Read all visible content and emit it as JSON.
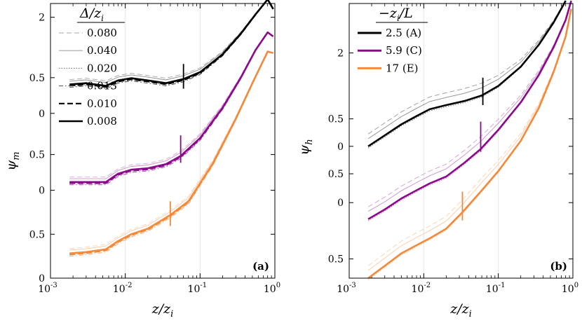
{
  "chart_data": [
    {
      "type": "line",
      "panel_label": "(a)",
      "ylabel_main": "ψ",
      "ylabel_sub": "m",
      "xlabel_main": "z/z",
      "xlabel_sub": "i",
      "xscale": "log",
      "xlim": [
        0.001,
        1
      ],
      "x_ticks": [
        {
          "base": "10",
          "exp": "-3",
          "value": 0.001
        },
        {
          "base": "10",
          "exp": "-2",
          "value": 0.01
        },
        {
          "base": "10",
          "exp": "-1",
          "value": 0.1
        },
        {
          "base": "10",
          "exp": "0",
          "value": 1
        }
      ],
      "vgrid": [
        0.01,
        0.1
      ],
      "y_ticks": [
        {
          "label": "0",
          "t": 1.0
        },
        {
          "label": "0.5",
          "t": 0.84
        },
        {
          "label": "0",
          "t": 0.68
        },
        {
          "label": "0.5",
          "t": 0.55
        },
        {
          "label": "0",
          "t": 0.4
        },
        {
          "label": "0.5",
          "t": 0.27
        },
        {
          "label": "2",
          "t": 0.05
        }
      ],
      "legend": {
        "title_main": "Δ/z",
        "title_sub": "i",
        "position": "top-left",
        "entries": [
          {
            "label": "0.080",
            "style": "dashed-thin"
          },
          {
            "label": "0.040",
            "style": "solid-thin"
          },
          {
            "label": "0.020",
            "style": "dotted"
          },
          {
            "label": "0.013",
            "style": "dashdot"
          },
          {
            "label": "0.010",
            "style": "dashed-thick"
          },
          {
            "label": "0.008",
            "style": "solid-thick"
          }
        ]
      },
      "series": [
        {
          "name": "2.5 (A)",
          "color": "#000000",
          "marker_x": 0.06,
          "marker_t": [
            0.22,
            0.31
          ],
          "x": [
            0.0018,
            0.003,
            0.0055,
            0.008,
            0.012,
            0.02,
            0.035,
            0.06,
            0.1,
            0.2,
            0.35,
            0.55,
            0.8,
            0.95
          ],
          "t": [
            0.295,
            0.29,
            0.3,
            0.28,
            0.272,
            0.28,
            0.29,
            0.275,
            0.25,
            0.185,
            0.11,
            0.04,
            -0.015,
            0.02
          ]
        },
        {
          "name": "5.9 (C)",
          "color": "#8a0a8a",
          "marker_x": 0.055,
          "marker_t": [
            0.48,
            0.58
          ],
          "x": [
            0.0018,
            0.003,
            0.0055,
            0.008,
            0.012,
            0.02,
            0.035,
            0.055,
            0.1,
            0.2,
            0.35,
            0.55,
            0.8,
            0.95
          ],
          "t": [
            0.65,
            0.65,
            0.65,
            0.62,
            0.605,
            0.6,
            0.585,
            0.555,
            0.49,
            0.38,
            0.27,
            0.17,
            0.105,
            0.12
          ]
        },
        {
          "name": "17 (E)",
          "color": "#f28a3c",
          "marker_x": 0.04,
          "marker_t": [
            0.72,
            0.81
          ],
          "x": [
            0.0018,
            0.003,
            0.0055,
            0.008,
            0.012,
            0.02,
            0.04,
            0.07,
            0.15,
            0.3,
            0.5,
            0.8,
            0.95
          ],
          "t": [
            0.91,
            0.905,
            0.895,
            0.865,
            0.84,
            0.82,
            0.77,
            0.72,
            0.58,
            0.42,
            0.29,
            0.175,
            0.18
          ]
        }
      ]
    },
    {
      "type": "line",
      "panel_label": "(b)",
      "ylabel_main": "ψ",
      "ylabel_sub": "h",
      "xlabel_main": "z/z",
      "xlabel_sub": "i",
      "xscale": "log",
      "xlim": [
        0.001,
        1
      ],
      "x_ticks": [
        {
          "base": "10",
          "exp": "-3",
          "value": 0.001
        },
        {
          "base": "10",
          "exp": "-2",
          "value": 0.01
        },
        {
          "base": "10",
          "exp": "-1",
          "value": 0.1
        },
        {
          "base": "10",
          "exp": "0",
          "value": 1
        }
      ],
      "vgrid": [
        0.01,
        0.1
      ],
      "y_ticks": [
        {
          "label": "0.5",
          "t": 0.93
        },
        {
          "label": "0",
          "t": 0.725
        },
        {
          "label": "0.5",
          "t": 0.62
        },
        {
          "label": "0",
          "t": 0.52
        },
        {
          "label": "0.5",
          "t": 0.42
        },
        {
          "label": "2",
          "t": 0.18
        }
      ],
      "legend": {
        "title_main": "−z",
        "title_sub": "i",
        "title_tail": "/L",
        "position": "top-left",
        "entries": [
          {
            "label": "2.5 (A)",
            "color": "#000000"
          },
          {
            "label": "5.9 (C)",
            "color": "#8a0a8a"
          },
          {
            "label": "17 (E)",
            "color": "#f28a3c"
          }
        ]
      },
      "series": [
        {
          "name": "2.5 (A)",
          "color": "#000000",
          "marker_x": 0.062,
          "marker_t": [
            0.27,
            0.37
          ],
          "x": [
            0.0018,
            0.003,
            0.005,
            0.008,
            0.012,
            0.02,
            0.035,
            0.06,
            0.1,
            0.2,
            0.35,
            0.55,
            0.8
          ],
          "t": [
            0.52,
            0.48,
            0.44,
            0.41,
            0.385,
            0.37,
            0.355,
            0.335,
            0.3,
            0.23,
            0.15,
            0.07,
            -0.01
          ]
        },
        {
          "name": "5.9 (C)",
          "color": "#8a0a8a",
          "marker_x": 0.058,
          "marker_t": [
            0.43,
            0.54
          ],
          "x": [
            0.0018,
            0.003,
            0.005,
            0.008,
            0.012,
            0.02,
            0.035,
            0.058,
            0.1,
            0.2,
            0.35,
            0.55,
            0.8,
            0.95
          ],
          "t": [
            0.785,
            0.75,
            0.71,
            0.68,
            0.655,
            0.63,
            0.58,
            0.53,
            0.46,
            0.36,
            0.26,
            0.16,
            0.06,
            -0.01
          ]
        },
        {
          "name": "17 (E)",
          "color": "#f28a3c",
          "marker_x": 0.033,
          "marker_t": [
            0.685,
            0.79
          ],
          "x": [
            0.0018,
            0.003,
            0.005,
            0.008,
            0.012,
            0.02,
            0.033,
            0.06,
            0.1,
            0.2,
            0.35,
            0.55,
            0.8,
            0.95
          ],
          "t": [
            1.0,
            0.955,
            0.91,
            0.88,
            0.855,
            0.82,
            0.76,
            0.68,
            0.61,
            0.5,
            0.38,
            0.25,
            0.12,
            0.02
          ]
        }
      ]
    }
  ]
}
